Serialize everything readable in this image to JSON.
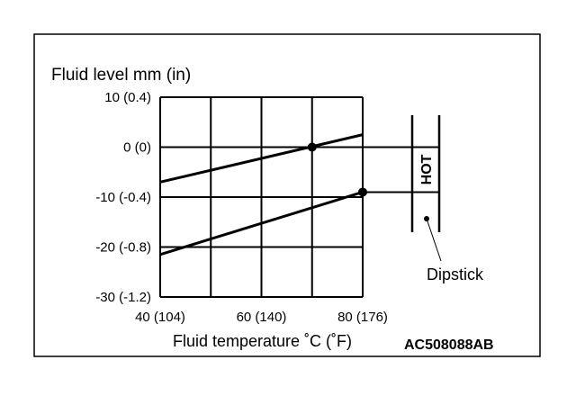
{
  "chart_data": {
    "type": "line",
    "title": "",
    "ylabel": "Fluid level mm (in)",
    "xlabel": "Fluid temperature ˚C (˚F)",
    "xlim": [
      40,
      80
    ],
    "ylim": [
      -30,
      10
    ],
    "x_ticks": [
      {
        "value": 40,
        "label": "40 (104)"
      },
      {
        "value": 60,
        "label": "60 (140)"
      },
      {
        "value": 80,
        "label": "80 (176)"
      }
    ],
    "x_grid": [
      40,
      50,
      60,
      70,
      80
    ],
    "y_ticks": [
      {
        "value": 10,
        "label": "10 (0.4)"
      },
      {
        "value": 0,
        "label": "0 (0)"
      },
      {
        "value": -10,
        "label": "-10 (-0.4)"
      },
      {
        "value": -20,
        "label": "-20 (-0.8)"
      },
      {
        "value": -30,
        "label": "-30 (-1.2)"
      }
    ],
    "grid": true,
    "series": [
      {
        "x": [
          40,
          80
        ],
        "y": [
          -7,
          2.5
        ]
      },
      {
        "x": [
          40,
          80
        ],
        "y": [
          -21.5,
          -9
        ]
      }
    ],
    "markers": [
      {
        "x": 70,
        "y": 0
      },
      {
        "x": 80,
        "y": -9
      }
    ],
    "reference_lines": [
      {
        "y": 0
      },
      {
        "y": -9
      }
    ],
    "dipstick": {
      "label": "Dipstick",
      "band_label": "HOT",
      "band_range": [
        -9,
        0
      ]
    },
    "figure_code": "AC508088AB"
  }
}
